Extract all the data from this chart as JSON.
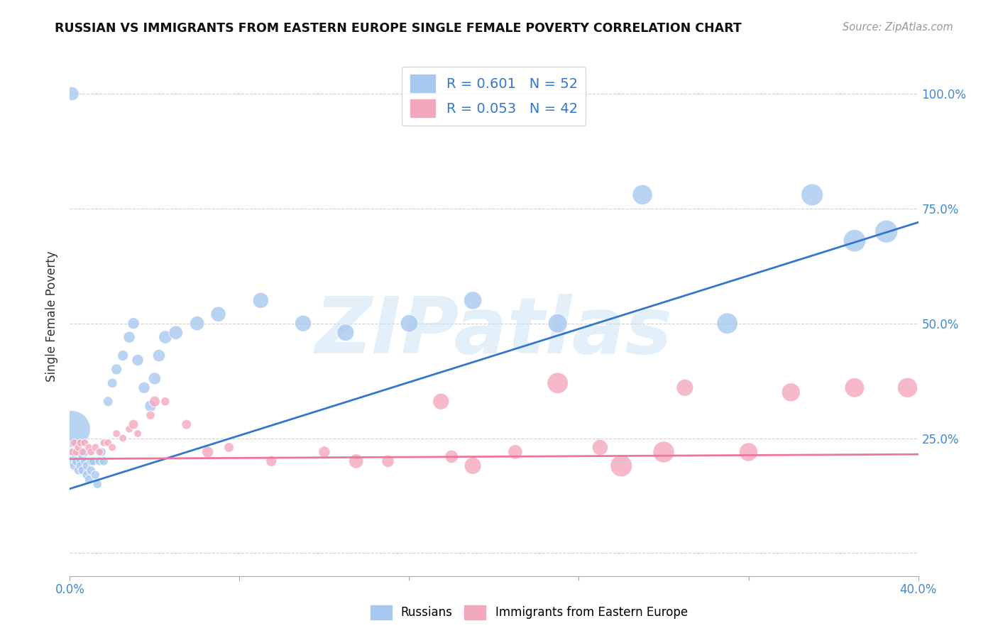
{
  "title": "RUSSIAN VS IMMIGRANTS FROM EASTERN EUROPE SINGLE FEMALE POVERTY CORRELATION CHART",
  "source": "Source: ZipAtlas.com",
  "ylabel": "Single Female Poverty",
  "x_min": 0.0,
  "x_max": 0.4,
  "y_min": -0.05,
  "y_max": 1.08,
  "russian_R": 0.601,
  "russian_N": 52,
  "immigrant_R": 0.053,
  "immigrant_N": 42,
  "russian_color": "#a8c8f0",
  "immigrant_color": "#f4a8bc",
  "russian_line_color": "#3377cc",
  "immigrant_line_color": "#ee7799",
  "legend_bottom_1": "Russians",
  "legend_bottom_2": "Immigrants from Eastern Europe",
  "watermark_text": "ZIPatlas",
  "background_color": "#ffffff",
  "grid_color": "#cccccc",
  "y_ticks": [
    0.0,
    0.25,
    0.5,
    0.75,
    1.0
  ],
  "y_tick_labels": [
    "",
    "25.0%",
    "50.0%",
    "75.0%",
    "100.0%"
  ],
  "russians_x": [
    0.001,
    0.002,
    0.002,
    0.003,
    0.003,
    0.004,
    0.004,
    0.005,
    0.005,
    0.006,
    0.006,
    0.007,
    0.007,
    0.008,
    0.008,
    0.009,
    0.01,
    0.01,
    0.011,
    0.012,
    0.013,
    0.014,
    0.015,
    0.016,
    0.018,
    0.02,
    0.022,
    0.025,
    0.028,
    0.03,
    0.032,
    0.035,
    0.038,
    0.04,
    0.042,
    0.045,
    0.05,
    0.06,
    0.07,
    0.09,
    0.11,
    0.13,
    0.16,
    0.19,
    0.23,
    0.27,
    0.31,
    0.35,
    0.37,
    0.385,
    0.001,
    0.001
  ],
  "russians_y": [
    0.2,
    0.22,
    0.19,
    0.21,
    0.2,
    0.18,
    0.22,
    0.2,
    0.19,
    0.21,
    0.18,
    0.2,
    0.22,
    0.17,
    0.19,
    0.16,
    0.18,
    0.2,
    0.2,
    0.17,
    0.15,
    0.2,
    0.22,
    0.2,
    0.33,
    0.37,
    0.4,
    0.43,
    0.47,
    0.5,
    0.42,
    0.36,
    0.32,
    0.38,
    0.43,
    0.47,
    0.48,
    0.5,
    0.52,
    0.55,
    0.5,
    0.48,
    0.5,
    0.55,
    0.5,
    0.78,
    0.5,
    0.78,
    0.68,
    0.7,
    0.27,
    1.0
  ],
  "russians_size": [
    30,
    20,
    20,
    20,
    20,
    20,
    20,
    20,
    20,
    20,
    20,
    20,
    20,
    20,
    20,
    20,
    20,
    20,
    20,
    20,
    20,
    20,
    20,
    20,
    25,
    25,
    30,
    30,
    35,
    35,
    35,
    35,
    35,
    40,
    40,
    45,
    50,
    55,
    60,
    65,
    70,
    75,
    80,
    85,
    95,
    105,
    115,
    125,
    130,
    135,
    350,
    50
  ],
  "immigrants_x": [
    0.001,
    0.002,
    0.003,
    0.004,
    0.005,
    0.006,
    0.007,
    0.009,
    0.01,
    0.012,
    0.014,
    0.016,
    0.018,
    0.02,
    0.022,
    0.025,
    0.028,
    0.032,
    0.038,
    0.045,
    0.055,
    0.075,
    0.095,
    0.12,
    0.15,
    0.18,
    0.21,
    0.25,
    0.29,
    0.34,
    0.37,
    0.395,
    0.23,
    0.28,
    0.175,
    0.32,
    0.135,
    0.065,
    0.04,
    0.03,
    0.26,
    0.19
  ],
  "immigrants_y": [
    0.22,
    0.24,
    0.22,
    0.23,
    0.24,
    0.22,
    0.24,
    0.23,
    0.22,
    0.23,
    0.22,
    0.24,
    0.24,
    0.23,
    0.26,
    0.25,
    0.27,
    0.26,
    0.3,
    0.33,
    0.28,
    0.23,
    0.2,
    0.22,
    0.2,
    0.21,
    0.22,
    0.23,
    0.36,
    0.35,
    0.36,
    0.36,
    0.37,
    0.22,
    0.33,
    0.22,
    0.2,
    0.22,
    0.33,
    0.28,
    0.19,
    0.19
  ],
  "immigrants_size": [
    15,
    15,
    15,
    15,
    15,
    15,
    15,
    15,
    15,
    15,
    15,
    15,
    15,
    15,
    15,
    15,
    15,
    15,
    20,
    20,
    25,
    25,
    30,
    35,
    40,
    45,
    55,
    65,
    75,
    90,
    100,
    105,
    115,
    120,
    70,
    90,
    55,
    35,
    30,
    25,
    125,
    75
  ]
}
